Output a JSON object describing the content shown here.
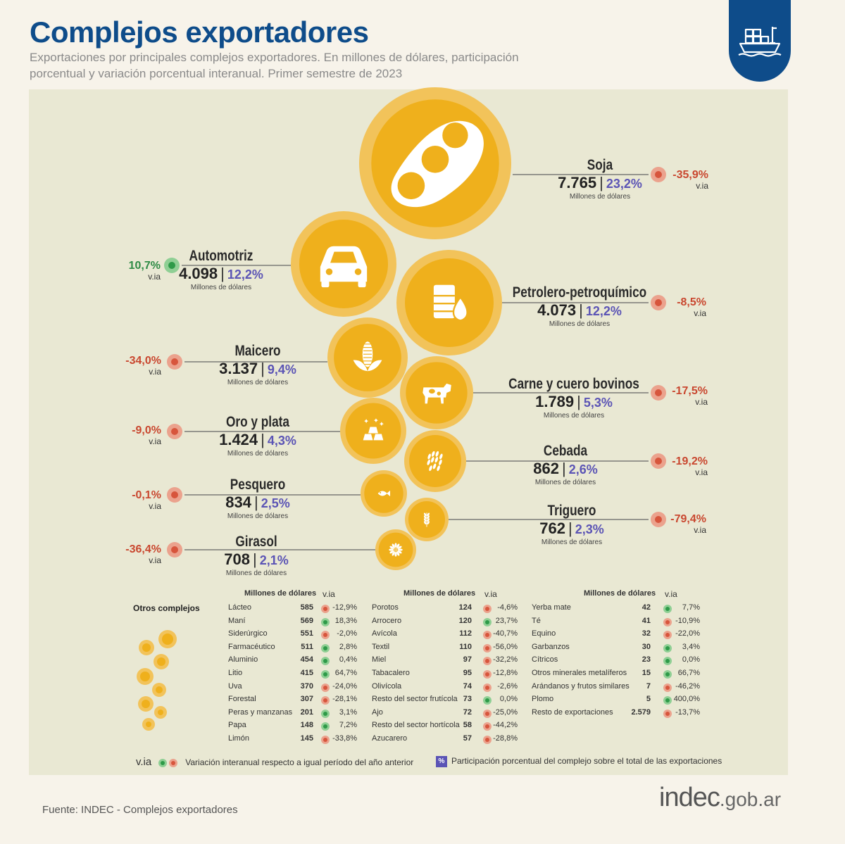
{
  "header": {
    "title": "Complejos exportadores",
    "subtitle": "Exportaciones por principales complejos exportadores. En millones de dólares, participación porcentual y variación porcentual interanual. Primer semestre de 2023",
    "badge_icon": "ship-icon"
  },
  "unit_label": "Millones de dólares",
  "via_label": "v.ia",
  "colors": {
    "bubble": "#efb01c",
    "ring": "#f2c35a",
    "negative": "#d7553c",
    "positive": "#2e9a48",
    "share": "#5b54b5",
    "title": "#0e4c8a"
  },
  "chart_data": {
    "type": "bubble",
    "title": "Complejos exportadores",
    "series": [
      {
        "name": "Soja",
        "value": "7.765",
        "share": "23,2%",
        "via": "-35,9%",
        "via_sign": "neg",
        "icon": "soybean-icon"
      },
      {
        "name": "Automotriz",
        "value": "4.098",
        "share": "12,2%",
        "via": "10,7%",
        "via_sign": "pos",
        "icon": "car-icon"
      },
      {
        "name": "Petrolero-petroquímico",
        "value": "4.073",
        "share": "12,2%",
        "via": "-8,5%",
        "via_sign": "neg",
        "icon": "oil-barrel-icon"
      },
      {
        "name": "Maicero",
        "value": "3.137",
        "share": "9,4%",
        "via": "-34,0%",
        "via_sign": "neg",
        "icon": "corn-icon"
      },
      {
        "name": "Carne y cuero bovinos",
        "value": "1.789",
        "share": "5,3%",
        "via": "-17,5%",
        "via_sign": "neg",
        "icon": "cow-icon"
      },
      {
        "name": "Oro y plata",
        "value": "1.424",
        "share": "4,3%",
        "via": "-9,0%",
        "via_sign": "neg",
        "icon": "gold-bars-icon"
      },
      {
        "name": "Cebada",
        "value": "862",
        "share": "2,6%",
        "via": "-19,2%",
        "via_sign": "neg",
        "icon": "barley-icon"
      },
      {
        "name": "Pesquero",
        "value": "834",
        "share": "2,5%",
        "via": "-0,1%",
        "via_sign": "neg",
        "icon": "fish-icon"
      },
      {
        "name": "Triguero",
        "value": "762",
        "share": "2,3%",
        "via": "-79,4%",
        "via_sign": "neg",
        "icon": "wheat-icon"
      },
      {
        "name": "Girasol",
        "value": "708",
        "share": "2,1%",
        "via": "-36,4%",
        "via_sign": "neg",
        "icon": "sunflower-icon"
      }
    ]
  },
  "otros": {
    "title": "Otros complejos",
    "col_header_value": "Millones de dólares",
    "col_header_via": "v.ia",
    "columns": [
      [
        {
          "name": "Lácteo",
          "value": "585",
          "via": "-12,9%",
          "sign": "neg"
        },
        {
          "name": "Maní",
          "value": "569",
          "via": "18,3%",
          "sign": "pos"
        },
        {
          "name": "Siderúrgico",
          "value": "551",
          "via": "-2,0%",
          "sign": "neg"
        },
        {
          "name": "Farmacéutico",
          "value": "511",
          "via": "2,8%",
          "sign": "pos"
        },
        {
          "name": "Aluminio",
          "value": "454",
          "via": "0,4%",
          "sign": "pos"
        },
        {
          "name": "Litio",
          "value": "415",
          "via": "64,7%",
          "sign": "pos"
        },
        {
          "name": "Uva",
          "value": "370",
          "via": "-24,0%",
          "sign": "neg"
        },
        {
          "name": "Forestal",
          "value": "307",
          "via": "-28,1%",
          "sign": "neg"
        },
        {
          "name": "Peras y manzanas",
          "value": "201",
          "via": "3,1%",
          "sign": "pos"
        },
        {
          "name": "Papa",
          "value": "148",
          "via": "7,2%",
          "sign": "pos"
        },
        {
          "name": "Limón",
          "value": "145",
          "via": "-33,8%",
          "sign": "neg"
        }
      ],
      [
        {
          "name": "Porotos",
          "value": "124",
          "via": "-4,6%",
          "sign": "neg"
        },
        {
          "name": "Arrocero",
          "value": "120",
          "via": "23,7%",
          "sign": "pos"
        },
        {
          "name": "Avícola",
          "value": "112",
          "via": "-40,7%",
          "sign": "neg"
        },
        {
          "name": "Textil",
          "value": "110",
          "via": "-56,0%",
          "sign": "neg"
        },
        {
          "name": "Miel",
          "value": "97",
          "via": "-32,2%",
          "sign": "neg"
        },
        {
          "name": "Tabacalero",
          "value": "95",
          "via": "-12,8%",
          "sign": "neg"
        },
        {
          "name": "Olivícola",
          "value": "74",
          "via": "-2,6%",
          "sign": "neg"
        },
        {
          "name": "Resto del sector frutícola",
          "value": "73",
          "via": "0,0%",
          "sign": "pos"
        },
        {
          "name": "Ajo",
          "value": "72",
          "via": "-25,0%",
          "sign": "neg"
        },
        {
          "name": "Resto del sector hortícola",
          "value": "58",
          "via": "-44,2%",
          "sign": "neg"
        },
        {
          "name": "Azucarero",
          "value": "57",
          "via": "-28,8%",
          "sign": "neg"
        }
      ],
      [
        {
          "name": "Yerba mate",
          "value": "42",
          "via": "7,7%",
          "sign": "pos"
        },
        {
          "name": "Té",
          "value": "41",
          "via": "-10,9%",
          "sign": "neg"
        },
        {
          "name": "Equino",
          "value": "32",
          "via": "-22,0%",
          "sign": "neg"
        },
        {
          "name": "Garbanzos",
          "value": "30",
          "via": "3,4%",
          "sign": "pos"
        },
        {
          "name": "Cítricos",
          "value": "23",
          "via": "0,0%",
          "sign": "pos"
        },
        {
          "name": "Otros minerales metalíferos",
          "value": "15",
          "via": "66,7%",
          "sign": "pos"
        },
        {
          "name": "Arándanos y frutos similares",
          "value": "7",
          "via": "-46,2%",
          "sign": "neg"
        },
        {
          "name": "Plomo",
          "value": "5",
          "via": "400,0%",
          "sign": "pos"
        },
        {
          "name": "Resto de exportaciones",
          "value": "2.579",
          "via": "-13,7%",
          "sign": "neg"
        }
      ]
    ]
  },
  "legend": {
    "via_text": "Variación interanual respecto a igual período del año anterior",
    "share_symbol": "%",
    "share_text": "Participación porcentual del complejo sobre el total de las exportaciones"
  },
  "footer": {
    "source": "Fuente: INDEC - Complejos exportadores",
    "logo_main": "indec",
    "logo_domain": ".gob.ar"
  }
}
